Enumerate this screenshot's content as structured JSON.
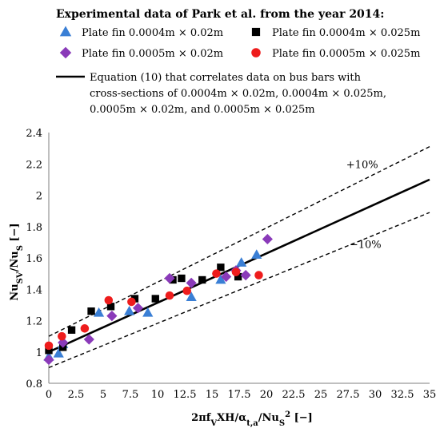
{
  "chart_data": {
    "type": "scatter",
    "legend": {
      "heading": "Experimental data of Park et al. from the year 2014:",
      "placement": "top"
    },
    "xlabel": {
      "main": "2πf",
      "sub1": "V",
      "mid": "XH/α",
      "sub2": "t,a",
      "mid2": "/Nu",
      "sub3": "S",
      "sup3": "2",
      "tail": "  [−]"
    },
    "ylabel": {
      "main": "Nu",
      "sub1": "SV",
      "mid": "/Nu",
      "sub2": "S",
      "tail": " [−]"
    },
    "xlim": [
      0,
      35
    ],
    "ylim": [
      0.8,
      2.4
    ],
    "xticks": [
      "0",
      "2.5",
      "5",
      "7.5",
      "10",
      "12.5",
      "15",
      "17.5",
      "20",
      "22.5",
      "25",
      "27.5",
      "30",
      "32.5",
      "35"
    ],
    "yticks": [
      "0.8",
      "1",
      "1.2",
      "1.4",
      "1.6",
      "1.8",
      "2",
      "2.2",
      "2.4"
    ],
    "grid": false,
    "series": [
      {
        "name": "Plate fin 0.0004m × 0.02m",
        "marker": "triangle",
        "color": "#3a7fd5",
        "points": [
          [
            0,
            0.97
          ],
          [
            0.9,
            0.99
          ],
          [
            1.3,
            1.05
          ],
          [
            4.6,
            1.25
          ],
          [
            7.4,
            1.26
          ],
          [
            9.1,
            1.25
          ],
          [
            13.1,
            1.35
          ],
          [
            15.8,
            1.46
          ],
          [
            17.7,
            1.57
          ],
          [
            19.1,
            1.62
          ]
        ]
      },
      {
        "name": "Plate fin 0.0004m × 0.025m",
        "marker": "square",
        "color": "#000000",
        "points": [
          [
            0,
            1.01
          ],
          [
            1.3,
            1.03
          ],
          [
            2.1,
            1.14
          ],
          [
            3.9,
            1.26
          ],
          [
            5.7,
            1.29
          ],
          [
            7.9,
            1.34
          ],
          [
            9.8,
            1.34
          ],
          [
            11.4,
            1.46
          ],
          [
            12.2,
            1.47
          ],
          [
            14.1,
            1.46
          ],
          [
            15.8,
            1.54
          ],
          [
            17.4,
            1.48
          ]
        ]
      },
      {
        "name": "Plate fin 0.0005m × 0.02m",
        "marker": "diamond",
        "color": "#8a3ab9",
        "points": [
          [
            0,
            0.95
          ],
          [
            1.3,
            1.06
          ],
          [
            3.7,
            1.08
          ],
          [
            5.8,
            1.23
          ],
          [
            8.2,
            1.28
          ],
          [
            11.1,
            1.47
          ],
          [
            13.1,
            1.44
          ],
          [
            16.3,
            1.48
          ],
          [
            17.2,
            1.52
          ],
          [
            18.1,
            1.49
          ],
          [
            20.1,
            1.72
          ]
        ]
      },
      {
        "name": "Plate fin 0.0005m × 0.025m",
        "marker": "circle",
        "color": "#ee1c1c",
        "points": [
          [
            0,
            1.04
          ],
          [
            1.2,
            1.1
          ],
          [
            3.3,
            1.15
          ],
          [
            5.5,
            1.33
          ],
          [
            7.6,
            1.32
          ],
          [
            11.1,
            1.36
          ],
          [
            12.7,
            1.39
          ],
          [
            15.4,
            1.5
          ],
          [
            17.2,
            1.51
          ],
          [
            19.3,
            1.49
          ]
        ]
      },
      {
        "name": "Equation (10) that correlates data on bus bars with cross-sections of 0.0004m × 0.02m, 0.0004m × 0.025m, 0.0005m × 0.02m, and 0.0005m × 0.025m",
        "name_lines": [
          "Equation (10) that correlates data on bus bars with",
          "cross-sections of 0.0004m × 0.02m, 0.0004m × 0.025m,",
          "0.0005m × 0.02m, and 0.0005m × 0.025m"
        ],
        "type": "line",
        "color": "#000000",
        "points": [
          [
            0,
            1.0
          ],
          [
            35,
            2.1
          ]
        ]
      },
      {
        "name": "+10%",
        "type": "line",
        "style": "dashed",
        "color": "#000000",
        "points": [
          [
            0,
            1.1
          ],
          [
            35,
            2.31
          ]
        ]
      },
      {
        "name": "−10%",
        "type": "line",
        "style": "dashed",
        "color": "#000000",
        "points": [
          [
            0,
            0.9
          ],
          [
            35,
            1.89
          ]
        ]
      }
    ],
    "annotations": [
      {
        "text": "+10%",
        "x": 28.8,
        "y": 2.2
      },
      {
        "text": "−10%",
        "x": 29.1,
        "y": 1.69
      }
    ]
  }
}
